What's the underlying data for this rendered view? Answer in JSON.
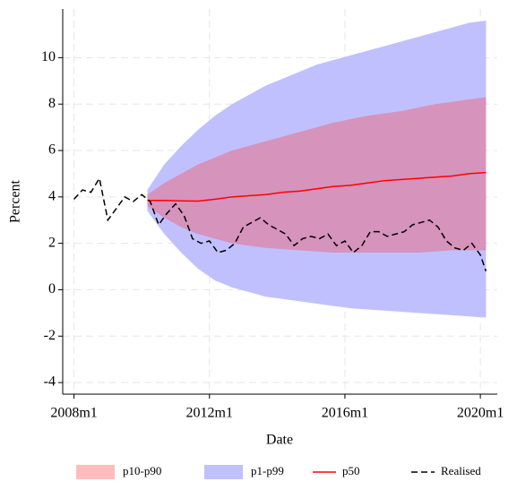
{
  "chart_data": {
    "type": "line",
    "x_label": "Date",
    "y_label": "Percent",
    "xlim": [
      572,
      726
    ],
    "xticks": [
      {
        "value": 576,
        "label": "2008m1"
      },
      {
        "value": 624,
        "label": "2012m1"
      },
      {
        "value": 672,
        "label": "2016m1"
      },
      {
        "value": 720,
        "label": "2020m1"
      }
    ],
    "ylim": [
      -4.5,
      12.1
    ],
    "yticks": [
      -4,
      -2,
      0,
      2,
      4,
      6,
      8,
      10
    ],
    "grid": true,
    "legend": "bottom",
    "bands": [
      {
        "name": "p10-p90",
        "color": "#ff4040",
        "opacity": 0.35,
        "x": [
          602,
          608,
          614,
          620,
          626,
          632,
          638,
          644,
          650,
          656,
          662,
          668,
          674,
          680,
          686,
          692,
          698,
          704,
          710,
          716,
          722
        ],
        "lower": [
          3.6,
          3.1,
          2.7,
          2.4,
          2.2,
          2.0,
          1.9,
          1.8,
          1.75,
          1.7,
          1.65,
          1.6,
          1.6,
          1.6,
          1.6,
          1.6,
          1.6,
          1.65,
          1.7,
          1.7,
          1.7
        ],
        "upper": [
          4.1,
          4.6,
          5.0,
          5.4,
          5.7,
          6.0,
          6.2,
          6.4,
          6.6,
          6.8,
          7.0,
          7.2,
          7.35,
          7.5,
          7.6,
          7.7,
          7.85,
          8.0,
          8.1,
          8.2,
          8.3
        ]
      },
      {
        "name": "p1-p99",
        "color": "#c0c0ff",
        "opacity": 1,
        "x": [
          602,
          608,
          614,
          620,
          626,
          632,
          638,
          644,
          650,
          656,
          662,
          668,
          674,
          680,
          686,
          692,
          698,
          704,
          710,
          716,
          722
        ],
        "lower": [
          3.4,
          2.4,
          1.6,
          0.9,
          0.4,
          0.1,
          -0.1,
          -0.3,
          -0.4,
          -0.5,
          -0.6,
          -0.7,
          -0.8,
          -0.85,
          -0.9,
          -0.95,
          -1.0,
          -1.05,
          -1.1,
          -1.15,
          -1.2
        ],
        "upper": [
          4.3,
          5.4,
          6.2,
          6.9,
          7.5,
          8.0,
          8.4,
          8.8,
          9.1,
          9.4,
          9.7,
          9.9,
          10.1,
          10.3,
          10.5,
          10.7,
          10.9,
          11.1,
          11.3,
          11.5,
          11.6
        ]
      }
    ],
    "series": [
      {
        "name": "p50",
        "color": "#ff0000",
        "dashed": false,
        "x": [
          602,
          608,
          614,
          620,
          626,
          632,
          638,
          644,
          650,
          656,
          662,
          668,
          674,
          680,
          686,
          692,
          698,
          704,
          710,
          716,
          722
        ],
        "values": [
          3.85,
          3.85,
          3.83,
          3.82,
          3.9,
          4.0,
          4.05,
          4.1,
          4.2,
          4.25,
          4.35,
          4.45,
          4.5,
          4.6,
          4.7,
          4.75,
          4.8,
          4.85,
          4.9,
          5.0,
          5.05
        ]
      },
      {
        "name": "Realised",
        "color": "#000000",
        "dashed": true,
        "x": [
          576,
          579,
          582,
          585,
          588,
          591,
          594,
          597,
          600,
          603,
          606,
          609,
          612,
          615,
          618,
          621,
          624,
          627,
          630,
          633,
          636,
          639,
          642,
          645,
          648,
          651,
          654,
          657,
          660,
          663,
          666,
          669,
          672,
          675,
          678,
          681,
          684,
          687,
          690,
          693,
          696,
          699,
          702,
          705,
          708,
          711,
          714,
          717,
          720,
          722
        ],
        "values": [
          3.9,
          4.3,
          4.2,
          4.8,
          3.0,
          3.5,
          4.0,
          3.8,
          4.1,
          3.8,
          2.8,
          3.3,
          3.7,
          3.2,
          2.2,
          2.0,
          2.1,
          1.6,
          1.7,
          2.0,
          2.7,
          2.9,
          3.1,
          2.8,
          2.6,
          2.4,
          1.9,
          2.2,
          2.3,
          2.2,
          2.4,
          1.9,
          2.1,
          1.6,
          1.9,
          2.5,
          2.5,
          2.3,
          2.4,
          2.5,
          2.8,
          2.9,
          3.0,
          2.7,
          2.1,
          1.8,
          1.7,
          2.0,
          1.5,
          0.8
        ]
      }
    ]
  }
}
